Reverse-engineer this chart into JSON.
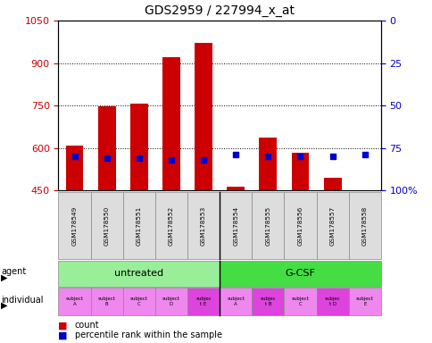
{
  "title": "GDS2959 / 227994_x_at",
  "samples": [
    "GSM178549",
    "GSM178550",
    "GSM178551",
    "GSM178552",
    "GSM178553",
    "GSM178554",
    "GSM178555",
    "GSM178556",
    "GSM178557",
    "GSM178558"
  ],
  "counts": [
    607,
    748,
    758,
    920,
    970,
    462,
    637,
    583,
    493,
    450
  ],
  "percentile_ranks": [
    80,
    81,
    81,
    82,
    82,
    79,
    80,
    80,
    80,
    79
  ],
  "ylim": [
    450,
    1050
  ],
  "yticks": [
    450,
    600,
    750,
    900,
    1050
  ],
  "y2lim": [
    100,
    0
  ],
  "y2ticks": [
    100,
    75,
    50,
    25,
    0
  ],
  "y2ticklabels": [
    "100%",
    "75",
    "50",
    "25",
    "0"
  ],
  "bar_color": "#cc0000",
  "dot_color": "#0000cc",
  "agent_groups": [
    {
      "label": "untreated",
      "start": 0,
      "end": 5,
      "color": "#99ee99"
    },
    {
      "label": "G-CSF",
      "start": 5,
      "end": 10,
      "color": "#44dd44"
    }
  ],
  "individual_labels": [
    "subject\nA",
    "subject\nB",
    "subject\nC",
    "subject\nD",
    "subjec\nt E",
    "subject\nA",
    "subjec\nt B",
    "subject\nC",
    "subjec\nt D",
    "subject\nE"
  ],
  "individual_colors": [
    "#ee88ee",
    "#ee88ee",
    "#ee88ee",
    "#ee88ee",
    "#dd44dd",
    "#ee88ee",
    "#dd44dd",
    "#ee88ee",
    "#dd44dd",
    "#ee88ee"
  ],
  "bar_width": 0.55,
  "tick_label_color_left": "#cc0000",
  "tick_label_color_right": "#0000cc"
}
